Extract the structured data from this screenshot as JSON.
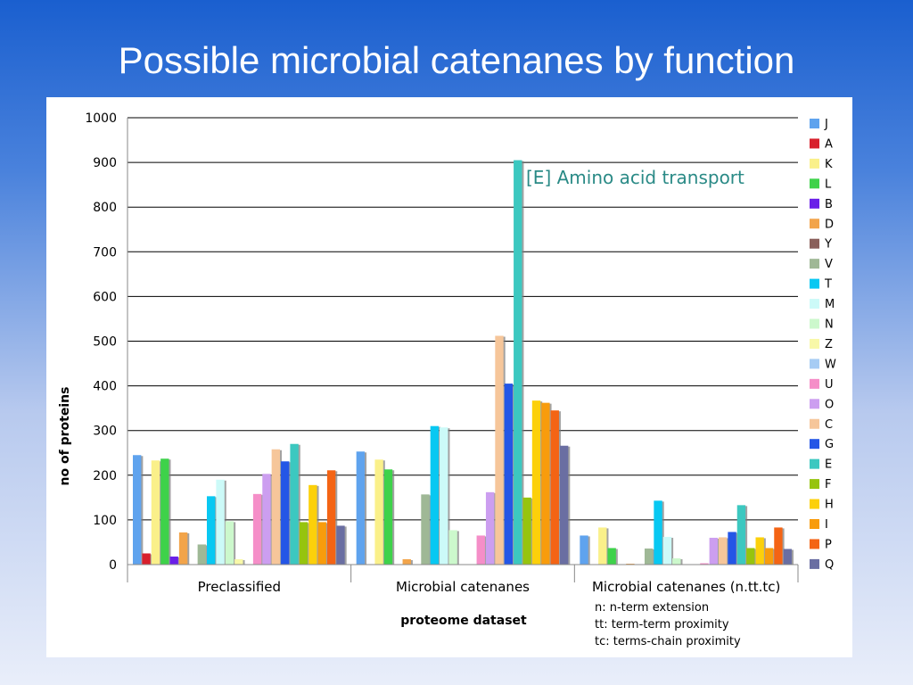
{
  "slide": {
    "title": "Possible microbial catenanes by function"
  },
  "chart_data": {
    "type": "bar",
    "title": "",
    "xlabel": "proteome dataset",
    "ylabel": "no of proteins",
    "ylim": [
      0,
      1000
    ],
    "yticks": [
      0,
      100,
      200,
      300,
      400,
      500,
      600,
      700,
      800,
      900,
      1000
    ],
    "grid": true,
    "legend_position": "right",
    "categories": [
      "Preclassified",
      "Microbial catenanes",
      "Microbial catenanes (n.tt.tc)"
    ],
    "series": [
      {
        "name": "J",
        "color": "#5fa3ee",
        "values": [
          245,
          253,
          65
        ]
      },
      {
        "name": "A",
        "color": "#d8202c",
        "values": [
          25,
          0,
          0
        ]
      },
      {
        "name": "K",
        "color": "#faf08a",
        "values": [
          233,
          235,
          83
        ]
      },
      {
        "name": "L",
        "color": "#3ed24a",
        "values": [
          237,
          213,
          37
        ]
      },
      {
        "name": "B",
        "color": "#6a1fe8",
        "values": [
          18,
          0,
          0
        ]
      },
      {
        "name": "D",
        "color": "#f2a44a",
        "values": [
          72,
          12,
          2
        ]
      },
      {
        "name": "Y",
        "color": "#8a5f5a",
        "values": [
          0,
          0,
          0
        ]
      },
      {
        "name": "V",
        "color": "#9fb896",
        "values": [
          45,
          157,
          36
        ]
      },
      {
        "name": "T",
        "color": "#08c8f2",
        "values": [
          153,
          310,
          143
        ]
      },
      {
        "name": "M",
        "color": "#ccfaf8",
        "values": [
          190,
          307,
          62
        ]
      },
      {
        "name": "N",
        "color": "#ccf8cc",
        "values": [
          97,
          77,
          14
        ]
      },
      {
        "name": "Z",
        "color": "#f8f8a8",
        "values": [
          12,
          0,
          0
        ]
      },
      {
        "name": "W",
        "color": "#a6ccf4",
        "values": [
          0,
          0,
          0
        ]
      },
      {
        "name": "U",
        "color": "#f58ec8",
        "values": [
          158,
          65,
          3
        ]
      },
      {
        "name": "O",
        "color": "#cc9ef0",
        "values": [
          203,
          162,
          60
        ]
      },
      {
        "name": "C",
        "color": "#f6c69a",
        "values": [
          258,
          512,
          61
        ]
      },
      {
        "name": "G",
        "color": "#2456e6",
        "values": [
          231,
          405,
          73
        ]
      },
      {
        "name": "E",
        "color": "#3cc8c0",
        "values": [
          270,
          905,
          133
        ]
      },
      {
        "name": "F",
        "color": "#96c40e",
        "values": [
          95,
          150,
          37
        ]
      },
      {
        "name": "H",
        "color": "#fcd00a",
        "values": [
          178,
          367,
          61
        ]
      },
      {
        "name": "I",
        "color": "#f89c0c",
        "values": [
          95,
          362,
          37
        ]
      },
      {
        "name": "P",
        "color": "#f46414",
        "values": [
          211,
          345,
          83
        ]
      },
      {
        "name": "Q",
        "color": "#6a6ea2",
        "values": [
          87,
          266,
          35
        ]
      }
    ],
    "annotations": [
      {
        "text": "[E] Amino acid transport"
      },
      {
        "text": "n: n-term extension"
      },
      {
        "text": "tt: term-term proximity"
      },
      {
        "text": "tc: terms-chain proximity"
      }
    ]
  }
}
